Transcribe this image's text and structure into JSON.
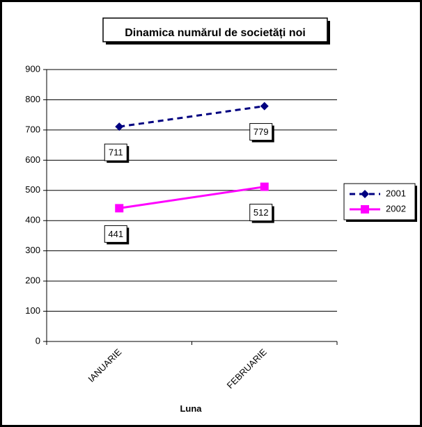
{
  "chart_data": {
    "type": "line",
    "title": "Dinamica numărul de societăți noi",
    "xlabel": "Luna",
    "ylabel": "",
    "categories": [
      "IANUARIE",
      "FEBRUARIE"
    ],
    "ylim": [
      0,
      900
    ],
    "yticks": [
      0,
      100,
      200,
      300,
      400,
      500,
      600,
      700,
      800,
      900
    ],
    "grid": true,
    "legend_position": "right",
    "series": [
      {
        "name": "2001",
        "values": [
          711,
          779
        ],
        "color": "#000080",
        "marker": "diamond",
        "line_style": "dashed"
      },
      {
        "name": "2002",
        "values": [
          441,
          512
        ],
        "color": "#ff00ff",
        "marker": "square",
        "line_style": "solid"
      }
    ]
  }
}
